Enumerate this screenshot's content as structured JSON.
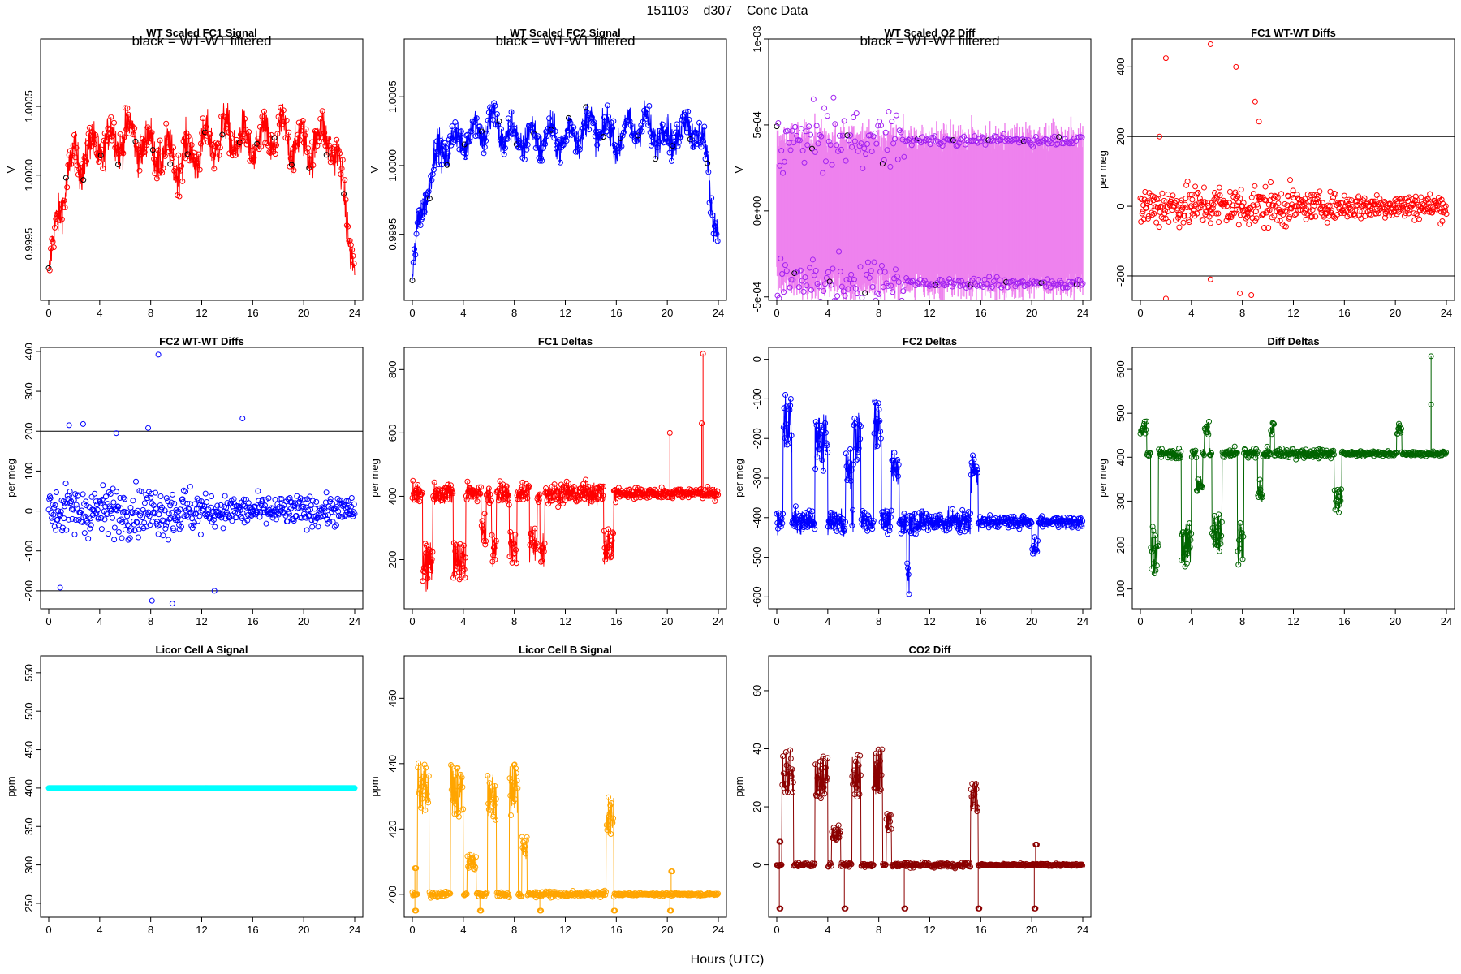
{
  "header": {
    "suptitle": "151103    d307    Conc Data",
    "xlabel": "Hours (UTC)"
  },
  "chart_data": [
    {
      "id": "p1",
      "type": "line",
      "title": "WT Scaled FC1 Signal",
      "subtitle": "black = WT-WT filtered",
      "xlabel": "",
      "ylabel": "V",
      "xlim": [
        0,
        24
      ],
      "ylim": [
        0.99909,
        1.00099
      ],
      "xticks": [
        0,
        4,
        8,
        12,
        16,
        20,
        24
      ],
      "xticklabels": [
        "0",
        "4",
        "8",
        "12",
        "16",
        "20",
        "24"
      ],
      "yticks": [
        0.9995,
        1.0,
        1.0005
      ],
      "yticklabels": [
        "0.9995",
        "1.0000",
        "1.0005"
      ],
      "color": "#ff0000",
      "style": "noisy-band",
      "series_desc": {
        "x": [
          0,
          1,
          2,
          4,
          6,
          8,
          10,
          12,
          14,
          16,
          18,
          20,
          22,
          23,
          23.5,
          24
        ],
        "y": [
          0.99925,
          0.99985,
          1.0001,
          1.0002,
          1.0003,
          1.0002,
          1.0001,
          1.0002,
          1.0003,
          1.0002,
          1.0003,
          1.0002,
          1.0003,
          0.99995,
          0.99965,
          0.9993
        ],
        "spread": 0.0003
      },
      "filtered_color": "#000000"
    },
    {
      "id": "p2",
      "type": "line",
      "title": "WT Scaled FC2 Signal",
      "subtitle": "black = WT-WT filtered",
      "xlabel": "",
      "ylabel": "V",
      "xlim": [
        0,
        24
      ],
      "ylim": [
        0.99902,
        1.00092
      ],
      "xticks": [
        0,
        4,
        8,
        12,
        16,
        20,
        24
      ],
      "xticklabels": [
        "0",
        "4",
        "8",
        "12",
        "16",
        "20",
        "24"
      ],
      "yticks": [
        0.9995,
        1.0,
        1.0005
      ],
      "yticklabels": [
        "0.9995",
        "1.0000",
        "1.0005"
      ],
      "color": "#0000ff",
      "style": "noisy-band",
      "series_desc": {
        "x": [
          0,
          0.5,
          1,
          2,
          4,
          6,
          8,
          10,
          12,
          14,
          16,
          18,
          20,
          22,
          23,
          23.5,
          24
        ],
        "y": [
          0.99915,
          0.99955,
          0.9998,
          1.0001,
          1.0002,
          1.0003,
          1.0002,
          1.0002,
          1.0002,
          1.0003,
          1.0002,
          1.0003,
          1.0002,
          1.0003,
          1.0001,
          0.99975,
          0.9995
        ],
        "spread": 0.00025
      },
      "filtered_color": "#000000"
    },
    {
      "id": "p3",
      "type": "line",
      "title": "WT Scaled O2 Diff",
      "subtitle": "black = WT-WT filtered",
      "xlabel": "",
      "ylabel": "V",
      "xlim": [
        0,
        24
      ],
      "ylim": [
        -0.00052,
        0.001
      ],
      "xticks": [
        0,
        4,
        8,
        12,
        16,
        20,
        24
      ],
      "xticklabels": [
        "0",
        "4",
        "8",
        "12",
        "16",
        "20",
        "24"
      ],
      "yticks": [
        -0.0005,
        0.0,
        0.0005,
        0.001
      ],
      "yticklabels": [
        "-5e-04",
        "0e+00",
        "5e-04",
        "1e-03"
      ],
      "color": "#ee82ee",
      "point_color": "#a020f0",
      "style": "two-level",
      "levels": {
        "high": 0.00041,
        "low": -0.00042
      },
      "series_desc": {
        "x": [
          0,
          4,
          8,
          12,
          16,
          20,
          24
        ],
        "y_high": [
          0.0006,
          0.0004,
          0.00041,
          0.00042,
          0.00041,
          0.00042,
          0.00041
        ],
        "y_low": [
          -0.0004,
          -0.00045,
          -0.00041,
          -0.00041,
          -0.00042,
          -0.0004,
          -0.00042
        ]
      }
    },
    {
      "id": "p4",
      "type": "scatter",
      "title": "FC1 WT-WT Diffs",
      "xlabel": "",
      "ylabel": "per meg",
      "xlim": [
        0,
        24
      ],
      "ylim": [
        -270,
        480
      ],
      "xticks": [
        0,
        4,
        8,
        12,
        16,
        20,
        24
      ],
      "xticklabels": [
        "0",
        "4",
        "8",
        "12",
        "16",
        "20",
        "24"
      ],
      "yticks": [
        -200,
        0,
        200,
        400
      ],
      "yticklabels": [
        "-200",
        "0",
        "200",
        "400"
      ],
      "hlines": [
        200,
        -200
      ],
      "color": "#ff0000",
      "series_desc": {
        "n": 520,
        "mean": 0,
        "sd": 55
      },
      "outliers": [
        [
          2.0,
          425
        ],
        [
          5.5,
          465
        ],
        [
          7.5,
          400
        ],
        [
          9.0,
          300
        ],
        [
          9.3,
          243
        ],
        [
          1.5,
          200
        ],
        [
          2.0,
          -265
        ],
        [
          5.5,
          -210
        ],
        [
          7.8,
          -250
        ],
        [
          8.7,
          -255
        ]
      ]
    },
    {
      "id": "p5",
      "type": "scatter",
      "title": "FC2 WT-WT Diffs",
      "xlabel": "",
      "ylabel": "per meg",
      "xlim": [
        0,
        24
      ],
      "ylim": [
        -245,
        410
      ],
      "xticks": [
        0,
        4,
        8,
        12,
        16,
        20,
        24
      ],
      "xticklabels": [
        "0",
        "4",
        "8",
        "12",
        "16",
        "20",
        "24"
      ],
      "yticks": [
        -200,
        -100,
        0,
        100,
        200,
        300,
        400
      ],
      "yticklabels": [
        "-200",
        "-100",
        "0",
        "100",
        "200",
        "300",
        "400"
      ],
      "hlines": [
        200,
        -200
      ],
      "color": "#0000ff",
      "series_desc": {
        "n": 520,
        "mean": 0,
        "sd": 55
      },
      "outliers": [
        [
          8.6,
          392
        ],
        [
          1.6,
          215
        ],
        [
          2.7,
          218
        ],
        [
          7.8,
          208
        ],
        [
          15.2,
          232
        ],
        [
          5.3,
          195
        ],
        [
          8.1,
          -225
        ],
        [
          9.7,
          -232
        ],
        [
          13.0,
          -200
        ],
        [
          0.9,
          -192
        ]
      ]
    },
    {
      "id": "p6",
      "type": "line",
      "title": "FC1 Deltas",
      "xlabel": "",
      "ylabel": "per meg",
      "xlim": [
        0,
        24
      ],
      "ylim": [
        45,
        870
      ],
      "xticks": [
        0,
        4,
        8,
        12,
        16,
        20,
        24
      ],
      "xticklabels": [
        "0",
        "4",
        "8",
        "12",
        "16",
        "20",
        "24"
      ],
      "yticks": [
        200,
        400,
        600,
        800
      ],
      "yticklabels": [
        "200",
        "400",
        "600",
        "800"
      ],
      "color": "#ff0000",
      "series_desc": {
        "baseline": 410,
        "noise": 25
      },
      "dips": [
        [
          0.8,
          1.6,
          130
        ],
        [
          3.2,
          4.2,
          150
        ],
        [
          5.4,
          5.8,
          250
        ],
        [
          6.2,
          6.6,
          180
        ],
        [
          7.6,
          8.2,
          180
        ],
        [
          9.2,
          9.8,
          220
        ],
        [
          10.0,
          10.4,
          180
        ],
        [
          15.0,
          15.8,
          200
        ]
      ],
      "spikes": [
        [
          22.8,
          850
        ],
        [
          22.7,
          630
        ],
        [
          20.2,
          600
        ]
      ]
    },
    {
      "id": "p7",
      "type": "line",
      "title": "FC2 Deltas",
      "xlabel": "",
      "ylabel": "per meg",
      "xlim": [
        0,
        24
      ],
      "ylim": [
        -630,
        30
      ],
      "xticks": [
        0,
        4,
        8,
        12,
        16,
        20,
        24
      ],
      "xticklabels": [
        "0",
        "4",
        "8",
        "12",
        "16",
        "20",
        "24"
      ],
      "yticks": [
        -600,
        -500,
        -400,
        -300,
        -200,
        -100,
        0
      ],
      "yticklabels": [
        "-600",
        "-500",
        "-400",
        "-300",
        "-200",
        "-100",
        "0"
      ],
      "color": "#0000ff",
      "series_desc": {
        "baseline": -410,
        "noise": 22
      },
      "peaks": [
        [
          0.5,
          1.2,
          -100
        ],
        [
          3.0,
          4.0,
          -150
        ],
        [
          5.4,
          5.9,
          -250
        ],
        [
          6.0,
          6.6,
          -140
        ],
        [
          7.6,
          8.2,
          -110
        ],
        [
          9.0,
          9.6,
          -250
        ],
        [
          15.2,
          15.8,
          -250
        ]
      ],
      "dips": [
        [
          20.0,
          20.5,
          -490
        ],
        [
          10.2,
          10.4,
          -600
        ]
      ]
    },
    {
      "id": "p8",
      "type": "line",
      "title": "Diff Deltas",
      "xlabel": "",
      "ylabel": "per meg",
      "xlim": [
        0,
        24
      ],
      "ylim": [
        55,
        650
      ],
      "xticks": [
        0,
        4,
        8,
        12,
        16,
        20,
        24
      ],
      "xticklabels": [
        "0",
        "4",
        "8",
        "12",
        "16",
        "20",
        "24"
      ],
      "yticks": [
        100,
        200,
        300,
        400,
        500,
        600
      ],
      "yticklabels": [
        "100",
        "200",
        "300",
        "400",
        "500",
        "600"
      ],
      "color": "#006400",
      "series_desc": {
        "baseline": 408,
        "noise": 8
      },
      "dips": [
        [
          0.8,
          1.4,
          140
        ],
        [
          3.2,
          4.0,
          150
        ],
        [
          4.4,
          4.9,
          320
        ],
        [
          5.6,
          6.4,
          180
        ],
        [
          7.6,
          8.1,
          150
        ],
        [
          9.2,
          9.6,
          300
        ],
        [
          15.2,
          15.8,
          280
        ]
      ],
      "peaks": [
        [
          0.0,
          0.5,
          480
        ],
        [
          5.0,
          5.4,
          480
        ],
        [
          10.2,
          10.5,
          480
        ],
        [
          20.1,
          20.5,
          480
        ]
      ],
      "spikes": [
        [
          22.8,
          630
        ],
        [
          22.8,
          520
        ]
      ]
    },
    {
      "id": "p9",
      "type": "line",
      "title": "Licor Cell A Signal",
      "xlabel": "",
      "ylabel": "ppm",
      "xlim": [
        0,
        24
      ],
      "ylim": [
        232,
        572
      ],
      "xticks": [
        0,
        4,
        8,
        12,
        16,
        20,
        24
      ],
      "xticklabels": [
        "0",
        "4",
        "8",
        "12",
        "16",
        "20",
        "24"
      ],
      "yticks": [
        250,
        300,
        350,
        400,
        450,
        500,
        550
      ],
      "yticklabels": [
        "250",
        "300",
        "350",
        "400",
        "450",
        "500",
        "550"
      ],
      "color": "#00ffff",
      "series_desc": {
        "constant": 400
      }
    },
    {
      "id": "p10",
      "type": "line",
      "title": "Licor Cell B Signal",
      "xlabel": "",
      "ylabel": "ppm",
      "xlim": [
        0,
        24
      ],
      "ylim": [
        393,
        473
      ],
      "xticks": [
        0,
        4,
        8,
        12,
        16,
        20,
        24
      ],
      "xticklabels": [
        "0",
        "4",
        "8",
        "12",
        "16",
        "20",
        "24"
      ],
      "yticks": [
        400,
        420,
        440,
        460
      ],
      "yticklabels": [
        "400",
        "420",
        "440",
        "460"
      ],
      "color": "#ffa500",
      "series_desc": {
        "baseline": 400,
        "noise": 0.6
      },
      "episodes": [
        [
          0.4,
          1.3,
          440
        ],
        [
          3.0,
          4.0,
          440
        ],
        [
          4.3,
          5.0,
          413
        ],
        [
          5.9,
          6.6,
          438
        ],
        [
          7.6,
          8.3,
          440
        ],
        [
          8.6,
          9.0,
          418
        ],
        [
          15.2,
          15.8,
          430
        ]
      ],
      "low_marks": [
        [
          0.2,
          395
        ],
        [
          5.3,
          395
        ],
        [
          10.0,
          395
        ],
        [
          15.8,
          395
        ],
        [
          20.2,
          395
        ]
      ],
      "mid_marks": [
        [
          0.2,
          408
        ],
        [
          20.3,
          407
        ]
      ]
    },
    {
      "id": "p11",
      "type": "line",
      "title": "CO2 Diff",
      "xlabel": "",
      "ylabel": "ppm",
      "xlim": [
        0,
        24
      ],
      "ylim": [
        -18,
        72
      ],
      "xticks": [
        0,
        4,
        8,
        12,
        16,
        20,
        24
      ],
      "xticklabels": [
        "0",
        "4",
        "8",
        "12",
        "16",
        "20",
        "24"
      ],
      "yticks": [
        0,
        20,
        40,
        60
      ],
      "yticklabels": [
        "0",
        "20",
        "40",
        "60"
      ],
      "color": "#8b0000",
      "series_desc": {
        "baseline": 0,
        "noise": 0.6
      },
      "episodes": [
        [
          0.4,
          1.3,
          40
        ],
        [
          3.0,
          4.0,
          38
        ],
        [
          4.3,
          5.0,
          13
        ],
        [
          5.9,
          6.6,
          38
        ],
        [
          7.6,
          8.3,
          40
        ],
        [
          8.6,
          9.0,
          18
        ],
        [
          15.2,
          15.8,
          30
        ]
      ],
      "low_marks": [
        [
          0.2,
          -15
        ],
        [
          5.3,
          -15
        ],
        [
          10.0,
          -15
        ],
        [
          15.8,
          -15
        ],
        [
          20.2,
          -15
        ]
      ],
      "mid_marks": [
        [
          0.2,
          8
        ],
        [
          20.3,
          7
        ]
      ]
    }
  ]
}
